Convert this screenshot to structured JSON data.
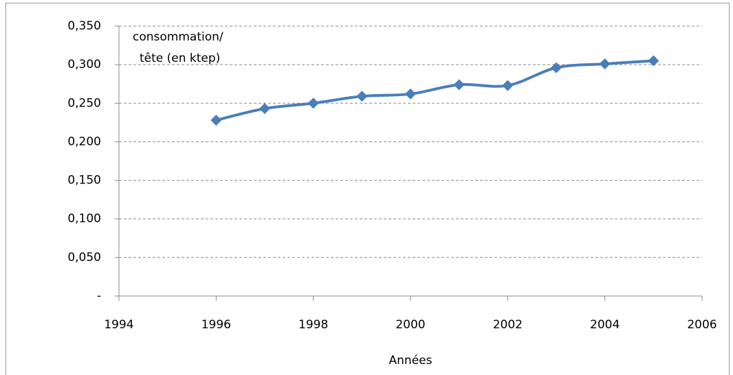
{
  "chart_data": {
    "type": "line",
    "ylabel": [
      "consommation/",
      "tête (en ktep)"
    ],
    "xlabel": "Années",
    "x": [
      1996,
      1997,
      1998,
      1999,
      2000,
      2001,
      2002,
      2003,
      2004,
      2005
    ],
    "values": [
      0.228,
      0.243,
      0.25,
      0.259,
      0.262,
      0.274,
      0.273,
      0.296,
      0.301,
      0.305
    ],
    "color": "#4a7ebb",
    "xlim": [
      1994,
      2006
    ],
    "xticks": [
      1994,
      1996,
      1998,
      2000,
      2002,
      2004,
      2006
    ],
    "ylim": [
      0,
      0.35
    ],
    "yticks": [
      {
        "value": 0,
        "label": "-"
      },
      {
        "value": 0.05,
        "label": "0,050"
      },
      {
        "value": 0.1,
        "label": "0,100"
      },
      {
        "value": 0.15,
        "label": "0,150"
      },
      {
        "value": 0.2,
        "label": "0,200"
      },
      {
        "value": 0.25,
        "label": "0,250"
      },
      {
        "value": 0.3,
        "label": "0,300"
      },
      {
        "value": 0.35,
        "label": "0,350"
      }
    ],
    "grid": true
  }
}
